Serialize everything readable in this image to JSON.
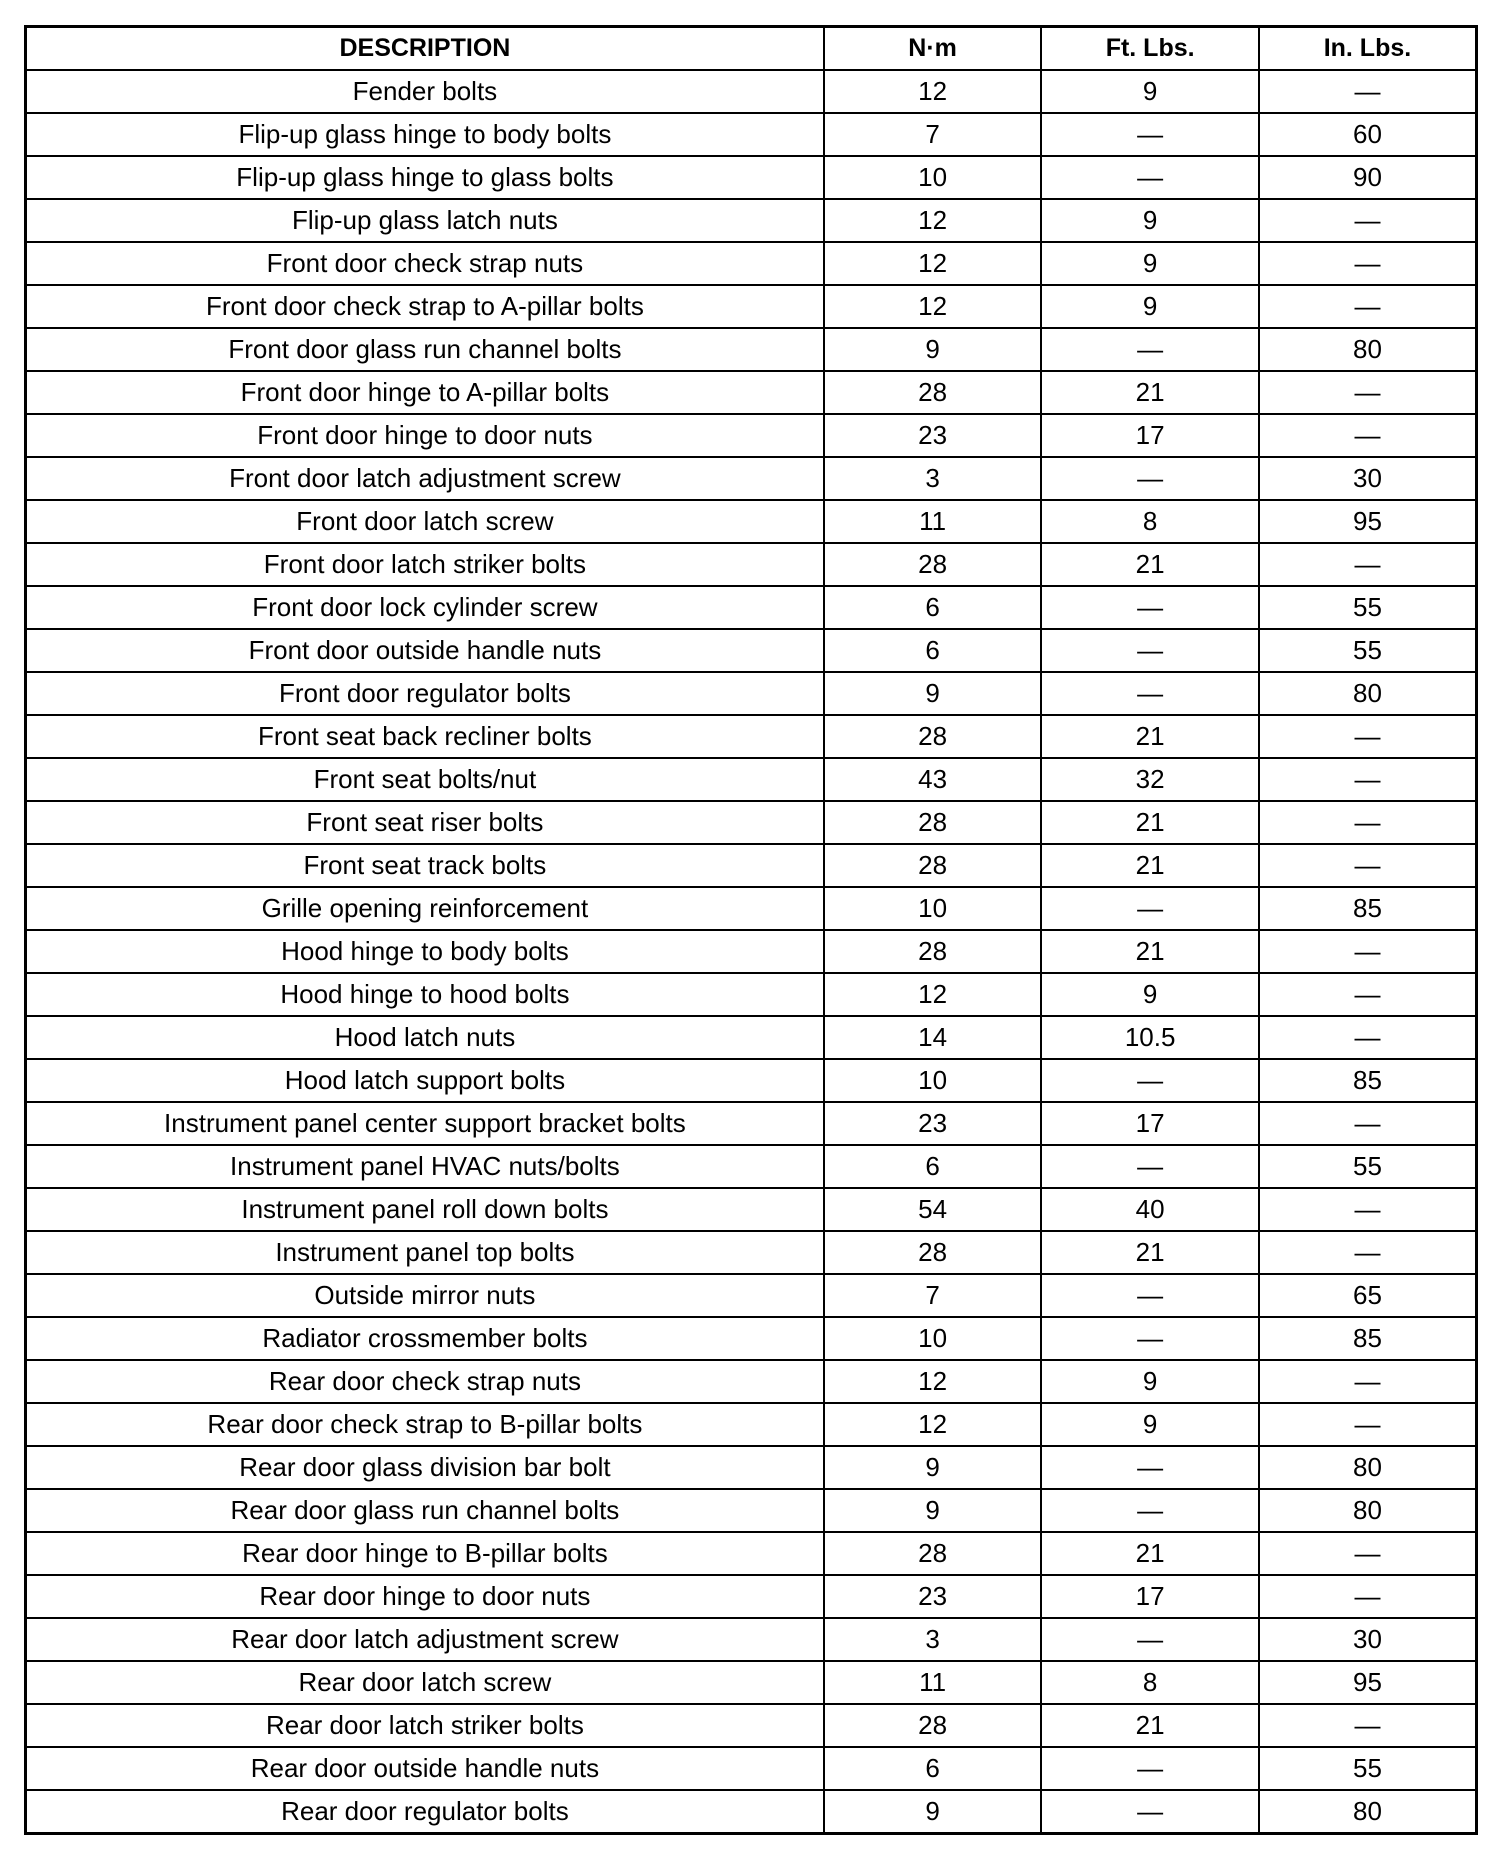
{
  "headers": [
    "DESCRIPTION",
    "N·m",
    "Ft. Lbs.",
    "In. Lbs."
  ],
  "rows": [
    [
      "Fender bolts",
      "12",
      "9",
      "—"
    ],
    [
      "Flip-up glass hinge to body bolts",
      "7",
      "—",
      "60"
    ],
    [
      "Flip-up glass hinge to glass bolts",
      "10",
      "—",
      "90"
    ],
    [
      "Flip-up glass latch nuts",
      "12",
      "9",
      "—"
    ],
    [
      "Front door check strap nuts",
      "12",
      "9",
      "—"
    ],
    [
      "Front door check strap to A-pillar bolts",
      "12",
      "9",
      "—"
    ],
    [
      "Front door glass run channel bolts",
      "9",
      "—",
      "80"
    ],
    [
      "Front door hinge to A-pillar bolts",
      "28",
      "21",
      "—"
    ],
    [
      "Front door hinge to door nuts",
      "23",
      "17",
      "—"
    ],
    [
      "Front door latch adjustment screw",
      "3",
      "—",
      "30"
    ],
    [
      "Front door latch screw",
      "11",
      "8",
      "95"
    ],
    [
      "Front door latch striker bolts",
      "28",
      "21",
      "—"
    ],
    [
      "Front door lock cylinder screw",
      "6",
      "—",
      "55"
    ],
    [
      "Front door outside handle nuts",
      "6",
      "—",
      "55"
    ],
    [
      "Front door regulator bolts",
      "9",
      "—",
      "80"
    ],
    [
      "Front seat back recliner bolts",
      "28",
      "21",
      "—"
    ],
    [
      "Front seat bolts/nut",
      "43",
      "32",
      "—"
    ],
    [
      "Front seat riser bolts",
      "28",
      "21",
      "—"
    ],
    [
      "Front seat track bolts",
      "28",
      "21",
      "—"
    ],
    [
      "Grille opening reinforcement",
      "10",
      "—",
      "85"
    ],
    [
      "Hood hinge to body bolts",
      "28",
      "21",
      "—"
    ],
    [
      "Hood hinge to hood bolts",
      "12",
      "9",
      "—"
    ],
    [
      "Hood latch nuts",
      "14",
      "10.5",
      "—"
    ],
    [
      "Hood latch support bolts",
      "10",
      "—",
      "85"
    ],
    [
      "Instrument panel center support bracket bolts",
      "23",
      "17",
      "—"
    ],
    [
      "Instrument panel HVAC nuts/bolts",
      "6",
      "—",
      "55"
    ],
    [
      "Instrument panel roll down bolts",
      "54",
      "40",
      "—"
    ],
    [
      "Instrument panel top bolts",
      "28",
      "21",
      "—"
    ],
    [
      "Outside mirror nuts",
      "7",
      "—",
      "65"
    ],
    [
      "Radiator crossmember bolts",
      "10",
      "—",
      "85"
    ],
    [
      "Rear door check strap nuts",
      "12",
      "9",
      "—"
    ],
    [
      "Rear door check strap to B-pillar bolts",
      "12",
      "9",
      "—"
    ],
    [
      "Rear door glass division bar bolt",
      "9",
      "—",
      "80"
    ],
    [
      "Rear door glass run channel bolts",
      "9",
      "—",
      "80"
    ],
    [
      "Rear door hinge to B-pillar bolts",
      "28",
      "21",
      "—"
    ],
    [
      "Rear door hinge to door nuts",
      "23",
      "17",
      "—"
    ],
    [
      "Rear door latch adjustment screw",
      "3",
      "—",
      "30"
    ],
    [
      "Rear door latch screw",
      "11",
      "8",
      "95"
    ],
    [
      "Rear door latch striker bolts",
      "28",
      "21",
      "—"
    ],
    [
      "Rear door outside handle nuts",
      "6",
      "—",
      "55"
    ],
    [
      "Rear door regulator bolts",
      "9",
      "—",
      "80"
    ]
  ]
}
